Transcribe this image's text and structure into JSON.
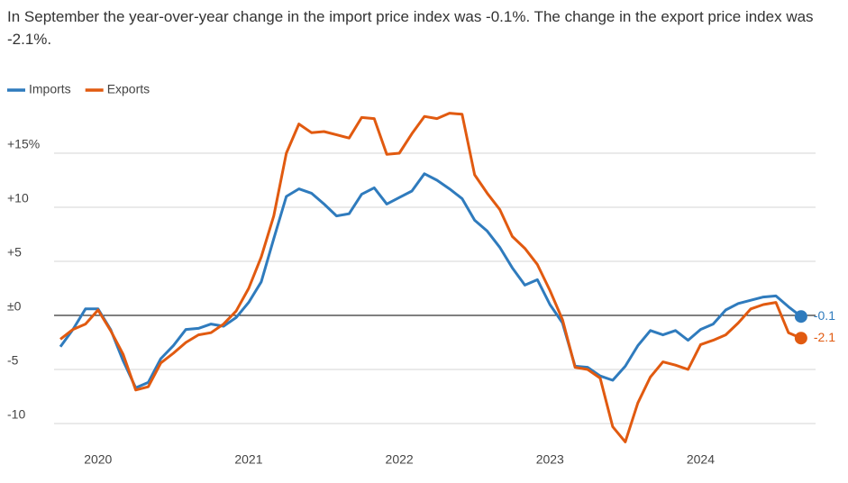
{
  "chart_data": {
    "type": "line",
    "title": "In September the year-over-year change in the import price index was -0.1%. The change in the export price index was -2.1%.",
    "categories": [
      null,
      null,
      null,
      "2020",
      null,
      null,
      null,
      null,
      null,
      null,
      null,
      null,
      null,
      null,
      null,
      "2021",
      null,
      null,
      null,
      null,
      null,
      null,
      null,
      null,
      null,
      null,
      null,
      "2022",
      null,
      null,
      null,
      null,
      null,
      null,
      null,
      null,
      null,
      null,
      null,
      "2023",
      null,
      null,
      null,
      null,
      null,
      null,
      null,
      null,
      null,
      null,
      null,
      "2024",
      null,
      null,
      null,
      null,
      null,
      null,
      null,
      null
    ],
    "series": [
      {
        "name": "Imports",
        "color": "#2f7bbd",
        "values": [
          -2.9,
          -1.3,
          0.6,
          0.6,
          -1.3,
          -4.2,
          -6.7,
          -6.2,
          -4.0,
          -2.8,
          -1.3,
          -1.2,
          -0.8,
          -1.0,
          -0.2,
          1.2,
          3.1,
          7.1,
          11.0,
          11.7,
          11.3,
          10.3,
          9.2,
          9.4,
          11.2,
          11.8,
          10.3,
          10.9,
          11.5,
          13.1,
          12.5,
          11.7,
          10.8,
          8.8,
          7.8,
          6.3,
          4.4,
          2.8,
          3.3,
          1.0,
          -0.7,
          -4.7,
          -4.8,
          -5.6,
          -6.0,
          -4.7,
          -2.8,
          -1.4,
          -1.8,
          -1.4,
          -2.3,
          -1.3,
          -0.8,
          0.5,
          1.1,
          1.4,
          1.7,
          1.8,
          0.8,
          -0.1
        ]
      },
      {
        "name": "Exports",
        "color": "#e15a10",
        "values": [
          -2.2,
          -1.3,
          -0.8,
          0.5,
          -1.4,
          -3.6,
          -6.9,
          -6.6,
          -4.4,
          -3.5,
          -2.5,
          -1.8,
          -1.6,
          -0.8,
          0.4,
          2.5,
          5.4,
          9.2,
          15.0,
          17.7,
          16.9,
          17.0,
          16.7,
          16.4,
          18.3,
          18.2,
          14.9,
          15.0,
          16.8,
          18.4,
          18.2,
          18.7,
          18.6,
          13.0,
          11.3,
          9.8,
          7.3,
          6.2,
          4.7,
          2.3,
          -0.4,
          -4.8,
          -5.0,
          -5.8,
          -10.3,
          -11.7,
          -8.1,
          -5.7,
          -4.3,
          -4.6,
          -5.0,
          -2.7,
          -2.3,
          -1.8,
          -0.7,
          0.6,
          1.0,
          1.2,
          -1.6,
          -2.1
        ]
      }
    ],
    "ylim": [
      -12.5,
      19.5
    ],
    "yticks": [
      {
        "value": 15,
        "label": "+15%"
      },
      {
        "value": 10,
        "label": "+10"
      },
      {
        "value": 5,
        "label": "+5"
      },
      {
        "value": 0,
        "label": "±0"
      },
      -5,
      -10
    ],
    "grid": true
  }
}
